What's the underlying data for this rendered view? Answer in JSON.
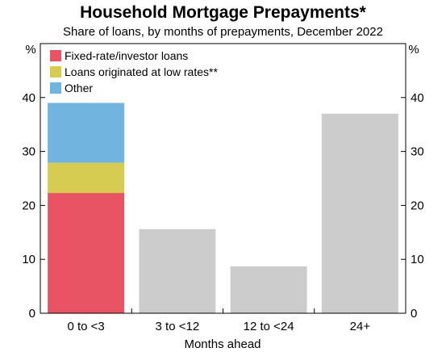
{
  "chart_data": {
    "type": "bar",
    "title": "Household Mortgage Prepayments*",
    "subtitle": "Share of loans, by months of prepayments, December 2022",
    "xlabel": "Months ahead",
    "ylabel_left": "%",
    "ylabel_right": "%",
    "ylim": [
      0,
      50
    ],
    "yticks": [
      0,
      10,
      20,
      30,
      40
    ],
    "grid": false,
    "legend_position": "top-left",
    "categories": [
      "0 to <3",
      "3 to <12",
      "12 to <24",
      "24+"
    ],
    "stacked_category": "0 to <3",
    "stack_series": [
      {
        "name": "Fixed-rate/investor loans",
        "color": "#e85464",
        "value": 22.3
      },
      {
        "name": "Loans originated at low rates**",
        "color": "#d6cc52",
        "value": 5.6
      },
      {
        "name": "Other",
        "color": "#71b4e0",
        "value": 11.1
      }
    ],
    "other_values": [
      {
        "category": "3 to <12",
        "value": 15.6
      },
      {
        "category": "12 to <24",
        "value": 8.7
      },
      {
        "category": "24+",
        "value": 37.0
      }
    ],
    "other_color": "#cccccc"
  }
}
